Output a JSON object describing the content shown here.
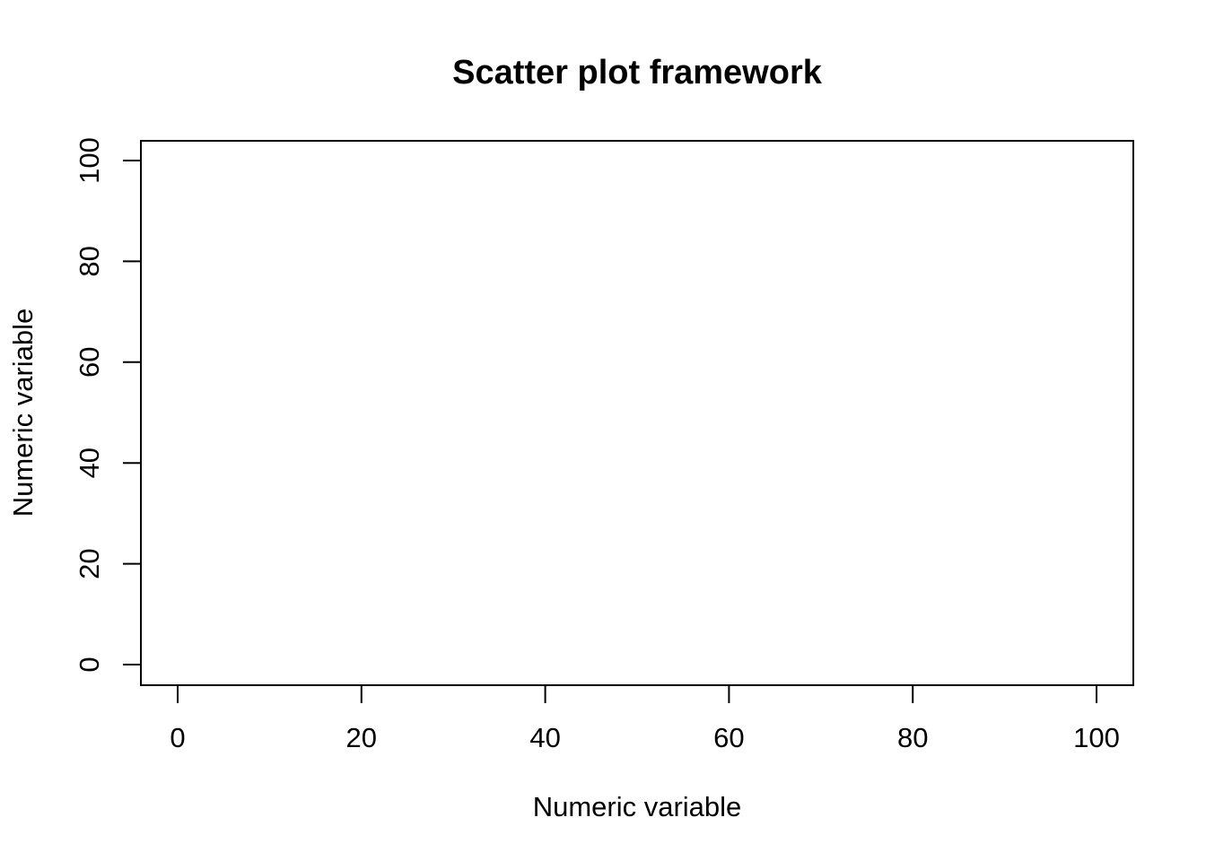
{
  "chart_data": {
    "type": "scatter",
    "title": "Scatter plot framework",
    "xlabel": "Numeric variable",
    "ylabel": "Numeric variable",
    "xlim": [
      0,
      100
    ],
    "ylim": [
      0,
      100
    ],
    "xticks": [
      0,
      20,
      40,
      60,
      80,
      100
    ],
    "yticks": [
      0,
      20,
      40,
      60,
      80,
      100
    ],
    "xtick_labels": [
      "0",
      "20",
      "40",
      "60",
      "80",
      "100"
    ],
    "ytick_labels": [
      "0",
      "20",
      "40",
      "60",
      "80",
      "100"
    ],
    "points": [],
    "grid": false,
    "legend": null,
    "colors": {
      "axis": "#000000",
      "background": "#ffffff"
    }
  }
}
